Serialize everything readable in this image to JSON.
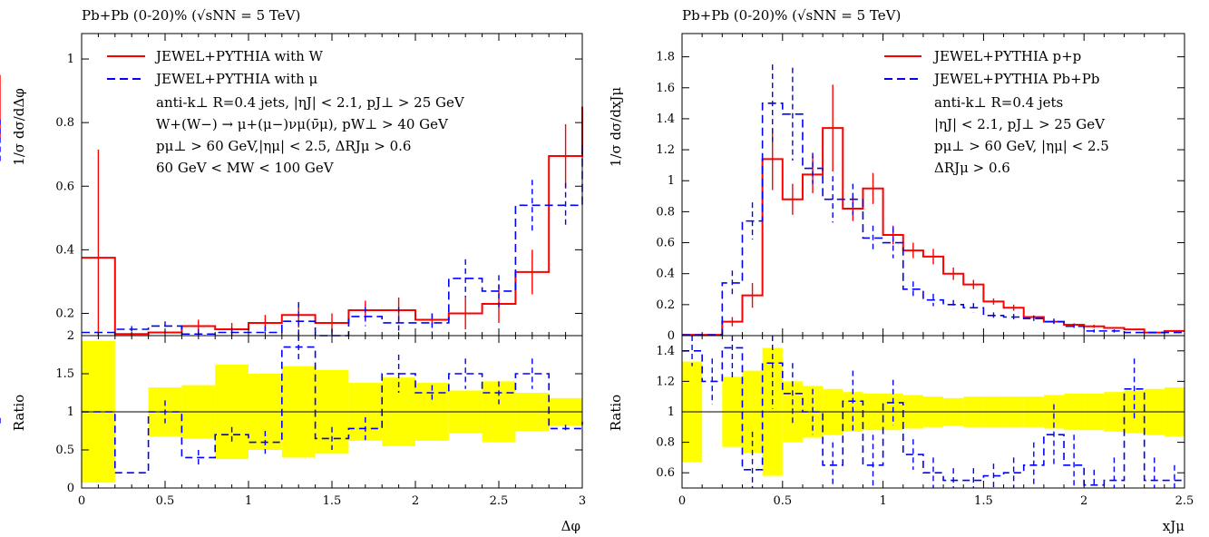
{
  "chart_data": [
    {
      "type": "line",
      "title": "Pb+Pb (0-20)% (√sNN = 5 TeV)",
      "ylabel": "1/σ dσ/dΔφ",
      "xlabel": "Δφ",
      "xlim": [
        0,
        3
      ],
      "ylim": [
        0.13,
        1.08
      ],
      "x_ticks": [
        "0",
        "0.5",
        "1",
        "1.5",
        "2",
        "2.5",
        "3"
      ],
      "y_ticks": [
        "0.2",
        "0.4",
        "0.6",
        "0.8",
        "1"
      ],
      "legend_position": "top-left",
      "legend": [
        {
          "label": "JEWEL+PYTHIA with W",
          "color": "#ff0000",
          "style": "solid"
        },
        {
          "label": "JEWEL+PYTHIA with μ",
          "color": "#0000ff",
          "style": "dashed"
        }
      ],
      "annotations": [
        "anti-k⊥ R=0.4 jets, |ηJ| < 2.1, pJ⊥ > 25 GeV",
        "W+(W−) → μ+(μ−)νμ(ν̄μ), pW⊥ > 40 GeV",
        "pμ⊥ > 60 GeV,|ημ| < 2.5, ΔRJμ > 0.6",
        "60 GeV < MW < 100 GeV"
      ],
      "bin_edges": [
        0,
        0.2,
        0.4,
        0.6,
        0.8,
        1.0,
        1.2,
        1.4,
        1.6,
        1.8,
        2.0,
        2.2,
        2.4,
        2.6,
        2.8,
        3.0
      ],
      "series": [
        {
          "name": "JEWEL+PYTHIA with W",
          "color": "#ff0000",
          "style": "solid",
          "values": [
            0.375,
            0.135,
            0.14,
            0.16,
            0.15,
            0.17,
            0.195,
            0.17,
            0.21,
            0.21,
            0.18,
            0.2,
            0.23,
            0.33,
            0.695,
            0.85
          ],
          "errors": [
            0.34,
            0.0,
            0.0,
            0.02,
            0.02,
            0.025,
            0.04,
            0.03,
            0.03,
            0.04,
            0.02,
            0.05,
            0.06,
            0.07,
            0.1,
            0.1
          ]
        },
        {
          "name": "JEWEL+PYTHIA with μ",
          "color": "#0000ff",
          "style": "dashed",
          "values": [
            0.14,
            0.15,
            0.16,
            0.135,
            0.14,
            0.14,
            0.175,
            0.12,
            0.19,
            0.17,
            0.17,
            0.31,
            0.27,
            0.54,
            0.54,
            0.74
          ],
          "errors": [
            0.0,
            0.01,
            0.015,
            0.015,
            0.015,
            0.02,
            0.06,
            0.03,
            0.03,
            0.05,
            0.03,
            0.06,
            0.05,
            0.08,
            0.07,
            0.07
          ]
        }
      ],
      "ratio_panel": {
        "ylabel": "Ratio",
        "ylim": [
          0,
          2
        ],
        "y_ticks": [
          "0",
          "0.5",
          "1",
          "1.5",
          "2"
        ],
        "band_color": "#ffff00",
        "band_half_width": [
          0.93,
          0.0,
          0.32,
          0.35,
          0.62,
          0.5,
          0.6,
          0.55,
          0.38,
          0.45,
          0.38,
          0.28,
          0.4,
          0.25,
          0.18,
          0.12
        ],
        "ratio_values": [
          1.0,
          0.2,
          1.0,
          0.4,
          0.7,
          0.6,
          1.85,
          0.65,
          0.78,
          1.5,
          1.25,
          1.5,
          1.25,
          1.5,
          0.78,
          0.87
        ],
        "ratio_errors": [
          0.0,
          0.0,
          0.15,
          0.1,
          0.1,
          0.15,
          0.2,
          0.15,
          0.15,
          0.25,
          0.1,
          0.2,
          0.15,
          0.2,
          0.05,
          0.05
        ]
      }
    },
    {
      "type": "line",
      "title": "Pb+Pb (0-20)% (√sNN = 5 TeV)",
      "ylabel": "1/σ dσ/dxJμ",
      "xlabel": "xJμ",
      "xlim": [
        0,
        2.5
      ],
      "ylim": [
        0,
        1.95
      ],
      "x_ticks": [
        "0",
        "0.5",
        "1",
        "1.5",
        "2",
        "2.5"
      ],
      "y_ticks": [
        "0",
        "0.2",
        "0.4",
        "0.6",
        "0.8",
        "1",
        "1.2",
        "1.4",
        "1.6",
        "1.8"
      ],
      "legend_position": "top-right",
      "legend": [
        {
          "label": "JEWEL+PYTHIA p+p",
          "color": "#ff0000",
          "style": "solid"
        },
        {
          "label": "JEWEL+PYTHIA Pb+Pb",
          "color": "#0000ff",
          "style": "dashed"
        }
      ],
      "annotations": [
        "anti-k⊥ R=0.4 jets",
        "|ηJ| < 2.1, pJ⊥ > 25 GeV",
        "pμ⊥ > 60 GeV, |ημ| < 2.5",
        "ΔRJμ > 0.6"
      ],
      "bin_edges": [
        0,
        0.1,
        0.2,
        0.3,
        0.4,
        0.5,
        0.6,
        0.7,
        0.8,
        0.9,
        1.0,
        1.1,
        1.2,
        1.3,
        1.4,
        1.5,
        1.6,
        1.7,
        1.8,
        1.9,
        2.0,
        2.1,
        2.2,
        2.3,
        2.4,
        2.5
      ],
      "series": [
        {
          "name": "JEWEL+PYTHIA p+p",
          "color": "#ff0000",
          "style": "solid",
          "values": [
            0.005,
            0.005,
            0.09,
            0.26,
            1.14,
            0.88,
            1.04,
            1.34,
            0.82,
            0.95,
            0.65,
            0.55,
            0.51,
            0.4,
            0.33,
            0.22,
            0.18,
            0.12,
            0.09,
            0.07,
            0.06,
            0.05,
            0.04,
            0.02,
            0.03
          ],
          "errors": [
            0.0,
            0.0,
            0.03,
            0.08,
            0.2,
            0.1,
            0.12,
            0.28,
            0.08,
            0.1,
            0.06,
            0.05,
            0.05,
            0.04,
            0.03,
            0.02,
            0.02,
            0.01,
            0.01,
            0.01,
            0.01,
            0.0,
            0.0,
            0.0,
            0.0
          ]
        },
        {
          "name": "JEWEL+PYTHIA Pb+Pb",
          "color": "#0000ff",
          "style": "dashed",
          "values": [
            0.005,
            0.005,
            0.34,
            0.74,
            1.5,
            1.43,
            1.08,
            0.88,
            0.88,
            0.63,
            0.6,
            0.3,
            0.23,
            0.2,
            0.18,
            0.13,
            0.12,
            0.11,
            0.09,
            0.06,
            0.03,
            0.03,
            0.02,
            0.02,
            0.02
          ],
          "errors": [
            0.0,
            0.0,
            0.08,
            0.12,
            0.25,
            0.3,
            0.1,
            0.15,
            0.1,
            0.08,
            0.1,
            0.05,
            0.04,
            0.03,
            0.03,
            0.02,
            0.02,
            0.02,
            0.02,
            0.01,
            0.01,
            0.01,
            0.0,
            0.0,
            0.0
          ]
        }
      ],
      "ratio_panel": {
        "ylabel": "Ratio",
        "ylim": [
          0.5,
          1.5
        ],
        "y_ticks": [
          "0.6",
          "0.8",
          "1",
          "1.2",
          "1.4"
        ],
        "band_color": "#ffff00",
        "band_half_width": [
          0.33,
          0.0,
          0.23,
          0.27,
          0.42,
          0.2,
          0.17,
          0.15,
          0.13,
          0.12,
          0.12,
          0.11,
          0.1,
          0.09,
          0.1,
          0.1,
          0.1,
          0.1,
          0.11,
          0.12,
          0.12,
          0.13,
          0.14,
          0.15,
          0.16
        ],
        "ratio_values": [
          1.4,
          1.2,
          1.42,
          0.62,
          1.32,
          1.12,
          1.0,
          0.65,
          1.07,
          0.65,
          1.06,
          0.72,
          0.6,
          0.55,
          0.55,
          0.58,
          0.6,
          0.65,
          0.85,
          0.65,
          0.52,
          0.55,
          1.15,
          0.55,
          0.55
        ],
        "ratio_errors": [
          0.1,
          0.15,
          0.2,
          0.25,
          0.3,
          0.2,
          0.15,
          0.15,
          0.2,
          0.2,
          0.15,
          0.1,
          0.1,
          0.08,
          0.08,
          0.08,
          0.1,
          0.15,
          0.2,
          0.2,
          0.1,
          0.15,
          0.2,
          0.15,
          0.1
        ]
      }
    }
  ]
}
